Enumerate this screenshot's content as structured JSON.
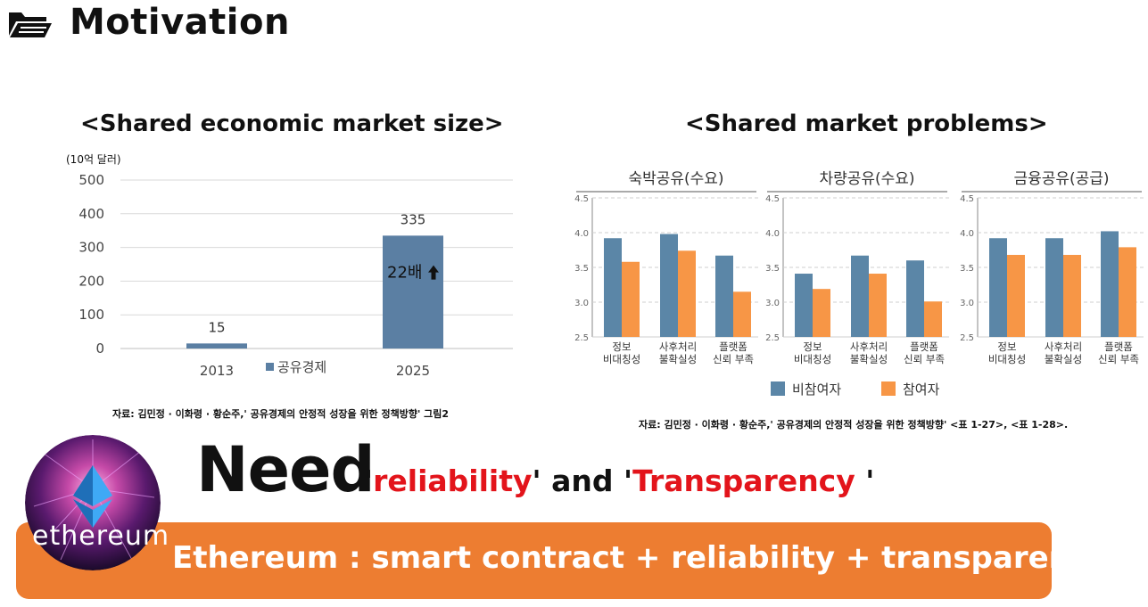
{
  "header": {
    "title": "Motivation",
    "icon": "folder-open-icon"
  },
  "left_chart": {
    "title": "<Shared economic market size>",
    "unit": "(10억 달러)",
    "legend": "공유경제",
    "bar_annotation": "22배",
    "source": "자료: 김민정 · 이화령 · 황순주,' 공유경제의 안정적 성장을 위한 정책방향' 그림2"
  },
  "right_chart": {
    "title": "<Shared market problems>",
    "legend": [
      "비참여자",
      "참여자"
    ],
    "source": "자료: 김민정 · 이화령 · 황순주,' 공유경제의 안정적 성장을 위한 정책방향' <표 1-27>, <표 1-28>."
  },
  "chart_data": [
    {
      "type": "bar",
      "categories": [
        "2013",
        "2025"
      ],
      "series": [
        {
          "name": "공유경제",
          "values": [
            15,
            335
          ]
        }
      ],
      "data_labels": [
        "15",
        "335"
      ],
      "ylim": [
        0,
        500
      ],
      "yticks": [
        0,
        100,
        200,
        300,
        400,
        500
      ],
      "grid": true,
      "color": "#5b7fa3"
    },
    {
      "type": "bar",
      "title": "숙박공유(수요)",
      "categories": [
        "정보\n비대칭성",
        "사후처리\n불확실성",
        "플랫폼\n신뢰 부족"
      ],
      "series": [
        {
          "name": "비참여자",
          "values": [
            3.92,
            3.98,
            3.67
          ]
        },
        {
          "name": "참여자",
          "values": [
            3.58,
            3.74,
            3.15
          ]
        }
      ],
      "ylim": [
        2.5,
        4.5
      ],
      "yticks": [
        "2.5",
        "3.0",
        "3.5",
        "4.0",
        "4.5"
      ]
    },
    {
      "type": "bar",
      "title": "차량공유(수요)",
      "categories": [
        "정보\n비대칭성",
        "사후처리\n불확실성",
        "플랫폼\n신뢰 부족"
      ],
      "series": [
        {
          "name": "비참여자",
          "values": [
            3.41,
            3.67,
            3.6
          ]
        },
        {
          "name": "참여자",
          "values": [
            3.19,
            3.41,
            3.01
          ]
        }
      ],
      "ylim": [
        2.5,
        4.5
      ],
      "yticks": [
        "2.5",
        "3.0",
        "3.5",
        "4.0",
        "4.5"
      ]
    },
    {
      "type": "bar",
      "title": "금융공유(공급)",
      "categories": [
        "정보\n비대칭성",
        "사후처리\n불확실성",
        "플랫폼\n신뢰 부족"
      ],
      "series": [
        {
          "name": "비참여자",
          "values": [
            3.92,
            3.92,
            4.02
          ]
        },
        {
          "name": "참여자",
          "values": [
            3.68,
            3.68,
            3.79
          ]
        }
      ],
      "ylim": [
        2.5,
        4.5
      ],
      "yticks": [
        "2.5",
        "3.0",
        "3.5",
        "4.0",
        "4.5"
      ]
    }
  ],
  "colors": {
    "left_bar": "#5b7fa3",
    "non_participant": "#5b86a7",
    "participant": "#f79646",
    "banner": "#ed7d31",
    "emphasis": "#e3141b"
  },
  "need": {
    "big": "Need",
    "q1": "'",
    "w1": "reliability",
    "mid": "' and '",
    "w2": "Transparency",
    "end": " '"
  },
  "logo": {
    "text": "ethereum",
    "icon": "ethereum-logo-icon"
  },
  "banner": {
    "text": "Ethereum : smart contract + reliability + transparency"
  }
}
